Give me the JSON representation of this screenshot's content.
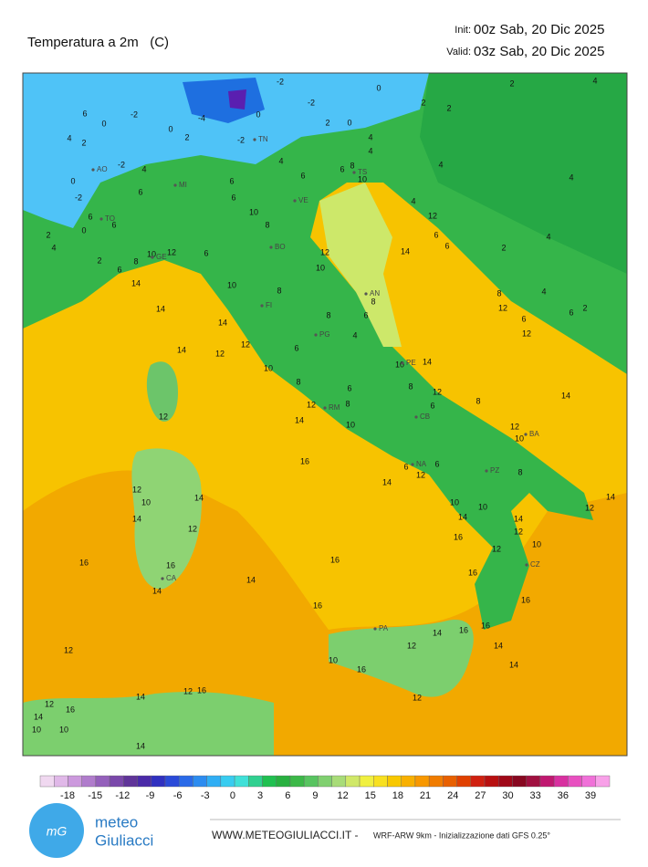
{
  "header": {
    "title": "Temperatura a 2m   (C)",
    "init_label": "Init:",
    "init": "00z Sab, 20 Dic 2025",
    "valid_label": "Valid:",
    "valid": "03z Sab, 20 Dic 2025"
  },
  "colorbar": {
    "ticks": [
      -18,
      -15,
      -12,
      -9,
      -6,
      -3,
      0,
      3,
      6,
      9,
      12,
      15,
      18,
      21,
      24,
      27,
      30,
      33,
      36,
      39
    ]
  },
  "cities": [
    "AO",
    "TO",
    "MI",
    "VE",
    "TS",
    "TN",
    "GE",
    "BO",
    "FI",
    "AN",
    "PG",
    "PE",
    "RM",
    "CB",
    "NA",
    "BA",
    "PZ",
    "CZ",
    "PA",
    "CA"
  ],
  "map_labels": [
    -2,
    0,
    -2,
    6,
    0,
    -4,
    0,
    -2,
    2,
    0,
    2,
    2,
    2,
    4,
    4,
    2,
    0,
    2,
    -2,
    4,
    -2,
    4,
    0,
    -2,
    6,
    6,
    6,
    4,
    6,
    6,
    8,
    4,
    10,
    4,
    4,
    6,
    6,
    10,
    4,
    12,
    2,
    0,
    4,
    8,
    12,
    14,
    6,
    6,
    2,
    4,
    2,
    8,
    6,
    12,
    10,
    6,
    10,
    14,
    10,
    8,
    8,
    8,
    4,
    14,
    14,
    8,
    6,
    12,
    6,
    6,
    2,
    14,
    12,
    6,
    4,
    12,
    12,
    10,
    10,
    14,
    8,
    6,
    8,
    12,
    8,
    14,
    12,
    12,
    8,
    14,
    10,
    6,
    12,
    10,
    16,
    6,
    6,
    12,
    14,
    8,
    12,
    14,
    12,
    10,
    14,
    14,
    12,
    10,
    10,
    14,
    14,
    12,
    12,
    10,
    16,
    16,
    16,
    16,
    16,
    14,
    14,
    16,
    16,
    12,
    16,
    16,
    14,
    12,
    14,
    10,
    16,
    14,
    12,
    16,
    14,
    12,
    16,
    12,
    14,
    14,
    10,
    10
  ],
  "footer": {
    "brand_top": "meteo",
    "brand_bottom": "Giuliacci",
    "site": "WWW.METEOGIULIACCI.IT -",
    "model": "WRF-ARW 9km - Inizializzazione dati GFS 0.25°"
  }
}
